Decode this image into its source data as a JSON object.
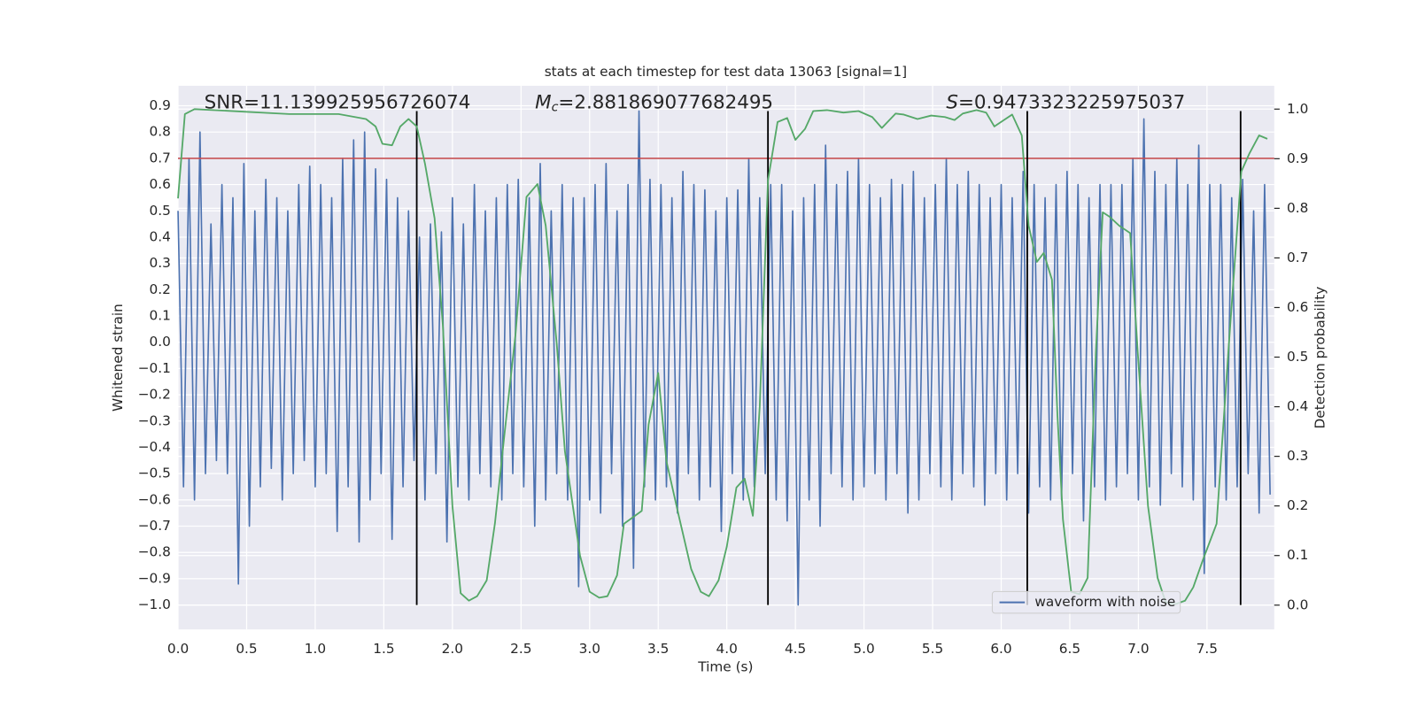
{
  "chart_data": {
    "type": "line",
    "title": "stats at each timestep for test data 13063 [signal=1]",
    "xlabel": "Time (s)",
    "ylabel": "Whitened strain",
    "y2label": "Detection probability",
    "annotations": {
      "snr": "SNR=11.139925956726074",
      "mc": {
        "symbol": "M",
        "subscript": "c",
        "text": "=2.881869077682495"
      },
      "s": {
        "symbol": "S",
        "text": "=0.9473323225975037"
      }
    },
    "xlim": [
      0,
      7.99
    ],
    "xticks": [
      {
        "value": 0,
        "label": "0.0"
      },
      0.5,
      {
        "value": 1,
        "label": "1.0"
      },
      1.5,
      {
        "value": 2,
        "label": "2.0"
      },
      2.5,
      {
        "value": 3,
        "label": "3.0"
      },
      3.5,
      {
        "value": 4,
        "label": "4.0"
      },
      4.5,
      {
        "value": 5,
        "label": "5.0"
      },
      5.5,
      {
        "value": 6,
        "label": "6.0"
      },
      6.5,
      {
        "value": 7,
        "label": "7.0"
      },
      7.5
    ],
    "ylim": [
      -1.093,
      0.976
    ],
    "yticks": [
      {
        "value": -1,
        "label": "−1.0"
      },
      {
        "value": -0.9,
        "label": "−0.9"
      },
      {
        "value": -0.8,
        "label": "−0.8"
      },
      {
        "value": -0.7,
        "label": "−0.7"
      },
      {
        "value": -0.6,
        "label": "−0.6"
      },
      {
        "value": -0.5,
        "label": "−0.5"
      },
      {
        "value": -0.4,
        "label": "−0.4"
      },
      {
        "value": -0.3,
        "label": "−0.3"
      },
      {
        "value": -0.2,
        "label": "−0.2"
      },
      {
        "value": -0.1,
        "label": "−0.1"
      },
      {
        "value": 0,
        "label": "0.0"
      },
      0.1,
      0.2,
      0.3,
      0.4,
      0.5,
      0.6,
      0.7,
      0.8,
      0.9
    ],
    "y2lim": [
      -0.049,
      1.047
    ],
    "y2ticks": [
      {
        "value": 0,
        "label": "0.0"
      },
      0.1,
      0.2,
      0.3,
      0.4,
      0.5,
      0.6,
      0.7,
      0.8,
      0.9,
      {
        "value": 1,
        "label": "1.0"
      }
    ],
    "grid": true,
    "legend": "lower right",
    "hline": {
      "y": 0.7,
      "color": "#c44e52"
    },
    "vlines": {
      "x": [
        1.74,
        4.3,
        6.19,
        7.745
      ],
      "ymin": -1.0,
      "ymax": 0.88,
      "color": "#000000"
    },
    "series": [
      {
        "name": "waveform with noise",
        "color": "#4c72b0",
        "x": [
          0,
          0.04,
          0.08,
          0.12,
          0.16,
          0.2,
          0.24,
          0.28,
          0.32,
          0.36,
          0.4,
          0.44,
          0.48,
          0.52,
          0.56,
          0.6,
          0.64,
          0.68,
          0.72,
          0.76,
          0.8,
          0.84,
          0.88,
          0.92,
          0.96,
          1,
          1.04,
          1.08,
          1.12,
          1.16,
          1.2,
          1.24,
          1.28,
          1.32,
          1.36,
          1.4,
          1.44,
          1.48,
          1.52,
          1.56,
          1.6,
          1.64,
          1.68,
          1.72,
          1.76,
          1.8,
          1.84,
          1.88,
          1.92,
          1.96,
          2,
          2.04,
          2.08,
          2.12,
          2.16,
          2.2,
          2.24,
          2.28,
          2.32,
          2.36,
          2.4,
          2.44,
          2.48,
          2.52,
          2.56,
          2.6,
          2.64,
          2.68,
          2.72,
          2.76,
          2.8,
          2.84,
          2.88,
          2.92,
          2.96,
          3,
          3.04,
          3.08,
          3.12,
          3.16,
          3.2,
          3.24,
          3.28,
          3.32,
          3.36,
          3.4,
          3.44,
          3.48,
          3.52,
          3.56,
          3.6,
          3.64,
          3.68,
          3.72,
          3.76,
          3.8,
          3.84,
          3.88,
          3.92,
          3.96,
          4,
          4.04,
          4.08,
          4.12,
          4.16,
          4.2,
          4.24,
          4.28,
          4.32,
          4.36,
          4.4,
          4.44,
          4.48,
          4.52,
          4.56,
          4.6,
          4.64,
          4.68,
          4.72,
          4.76,
          4.8,
          4.84,
          4.88,
          4.92,
          4.96,
          5,
          5.04,
          5.08,
          5.12,
          5.16,
          5.2,
          5.24,
          5.28,
          5.32,
          5.36,
          5.4,
          5.44,
          5.48,
          5.52,
          5.56,
          5.6,
          5.64,
          5.68,
          5.72,
          5.76,
          5.8,
          5.84,
          5.88,
          5.92,
          5.96,
          6,
          6.04,
          6.08,
          6.12,
          6.16,
          6.2,
          6.24,
          6.28,
          6.32,
          6.36,
          6.4,
          6.44,
          6.48,
          6.52,
          6.56,
          6.6,
          6.64,
          6.68,
          6.72,
          6.76,
          6.8,
          6.84,
          6.88,
          6.92,
          6.96,
          7,
          7.04,
          7.08,
          7.12,
          7.16,
          7.2,
          7.24,
          7.28,
          7.32,
          7.36,
          7.4,
          7.44,
          7.48,
          7.52,
          7.56,
          7.6,
          7.64,
          7.68,
          7.72,
          7.76,
          7.8,
          7.84,
          7.88,
          7.92,
          7.96
        ],
        "values": [
          0.5,
          -0.55,
          0.7,
          -0.6,
          0.8,
          -0.5,
          0.45,
          -0.45,
          0.6,
          -0.5,
          0.55,
          -0.92,
          0.68,
          -0.7,
          0.5,
          -0.55,
          0.62,
          -0.48,
          0.55,
          -0.6,
          0.5,
          -0.5,
          0.6,
          -0.45,
          0.67,
          -0.55,
          0.6,
          -0.5,
          0.55,
          -0.72,
          0.7,
          -0.55,
          0.77,
          -0.76,
          0.8,
          -0.6,
          0.66,
          -0.5,
          0.62,
          -0.75,
          0.55,
          -0.55,
          0.5,
          -0.45,
          0.4,
          -0.6,
          0.45,
          -0.5,
          0.42,
          -0.76,
          0.55,
          -0.55,
          0.45,
          -0.6,
          0.6,
          -0.5,
          0.5,
          -0.55,
          0.55,
          -0.6,
          0.6,
          -0.5,
          0.62,
          -0.55,
          0.55,
          -0.7,
          0.68,
          -0.6,
          0.5,
          -0.5,
          0.6,
          -0.6,
          0.55,
          -0.93,
          0.55,
          -0.6,
          0.6,
          -0.65,
          0.68,
          -0.5,
          0.5,
          -0.7,
          0.6,
          -0.86,
          0.88,
          -0.55,
          0.62,
          -0.6,
          0.6,
          -0.55,
          0.55,
          -0.65,
          0.65,
          -0.5,
          0.6,
          -0.6,
          0.58,
          -0.55,
          0.5,
          -0.72,
          0.55,
          -0.5,
          0.58,
          -0.6,
          0.7,
          -0.55,
          0.55,
          -0.5,
          0.6,
          -0.6,
          0.6,
          -0.68,
          0.5,
          -1.0,
          0.55,
          -0.6,
          0.6,
          -0.7,
          0.75,
          -0.5,
          0.6,
          -0.55,
          0.65,
          -0.6,
          0.7,
          -0.55,
          0.6,
          -0.5,
          0.55,
          -0.6,
          0.62,
          -0.5,
          0.6,
          -0.65,
          0.65,
          -0.6,
          0.55,
          -0.5,
          0.6,
          -0.55,
          0.7,
          -0.6,
          0.6,
          -0.5,
          0.65,
          -0.55,
          0.6,
          -0.62,
          0.55,
          -0.5,
          0.6,
          -0.6,
          0.55,
          -0.5,
          0.65,
          -0.65,
          0.6,
          -0.55,
          0.55,
          -0.6,
          0.6,
          -0.6,
          0.65,
          -0.5,
          0.6,
          -0.68,
          0.55,
          -0.55,
          0.6,
          -0.6,
          0.6,
          -0.55,
          0.6,
          -0.5,
          0.7,
          -0.6,
          0.85,
          -0.55,
          0.65,
          -0.62,
          0.6,
          -0.5,
          0.7,
          -0.55,
          0.6,
          -0.6,
          0.75,
          -0.88,
          0.6,
          -0.55,
          0.6,
          -0.6,
          0.55,
          -0.55,
          0.62,
          -0.5,
          0.5,
          -0.65,
          0.6,
          -0.58
        ]
      },
      {
        "color": "#55a868",
        "axis": "y2",
        "x": [
          0,
          0.05,
          0.12,
          0.81,
          1.17,
          1.37,
          1.44,
          1.49,
          1.56,
          1.62,
          1.68,
          1.74,
          1.8,
          1.87,
          1.93,
          2,
          2.06,
          2.12,
          2.18,
          2.25,
          2.31,
          2.38,
          2.46,
          2.54,
          2.62,
          2.68,
          2.76,
          2.82,
          2.93,
          3,
          3.07,
          3.13,
          3.2,
          3.25,
          3.32,
          3.38,
          3.43,
          3.5,
          3.56,
          3.65,
          3.74,
          3.81,
          3.87,
          3.94,
          4,
          4.07,
          4.13,
          4.19,
          4.24,
          4.3,
          4.37,
          4.44,
          4.5,
          4.57,
          4.63,
          4.73,
          4.85,
          4.96,
          5.06,
          5.13,
          5.23,
          5.29,
          5.39,
          5.49,
          5.59,
          5.66,
          5.72,
          5.82,
          5.89,
          5.95,
          6.02,
          6.08,
          6.15,
          6.2,
          6.26,
          6.31,
          6.37,
          6.41,
          6.45,
          6.51,
          6.57,
          6.63,
          6.69,
          6.74,
          6.79,
          6.86,
          6.94,
          7,
          7.07,
          7.14,
          7.2,
          7.27,
          7.34,
          7.4,
          7.47,
          7.57,
          7.66,
          7.75,
          7.81,
          7.88,
          7.94
        ],
        "values": [
          0.82,
          0.99,
          1.0,
          0.99,
          0.99,
          0.98,
          0.965,
          0.93,
          0.927,
          0.965,
          0.98,
          0.965,
          0.89,
          0.78,
          0.565,
          0.2,
          0.024,
          0.009,
          0.018,
          0.05,
          0.165,
          0.346,
          0.546,
          0.823,
          0.849,
          0.765,
          0.528,
          0.31,
          0.1,
          0.027,
          0.015,
          0.018,
          0.06,
          0.164,
          0.178,
          0.19,
          0.364,
          0.468,
          0.29,
          0.18,
          0.073,
          0.027,
          0.018,
          0.05,
          0.118,
          0.237,
          0.255,
          0.18,
          0.4,
          0.856,
          0.974,
          0.982,
          0.938,
          0.96,
          0.996,
          0.998,
          0.993,
          0.996,
          0.984,
          0.962,
          0.991,
          0.989,
          0.98,
          0.987,
          0.984,
          0.978,
          0.991,
          0.998,
          0.993,
          0.965,
          0.978,
          0.989,
          0.947,
          0.765,
          0.692,
          0.71,
          0.656,
          0.383,
          0.173,
          0.027,
          0.022,
          0.055,
          0.51,
          0.792,
          0.783,
          0.765,
          0.75,
          0.49,
          0.2,
          0.055,
          0.005,
          0.002,
          0.009,
          0.036,
          0.091,
          0.164,
          0.528,
          0.874,
          0.911,
          0.947,
          0.94
        ]
      }
    ]
  }
}
